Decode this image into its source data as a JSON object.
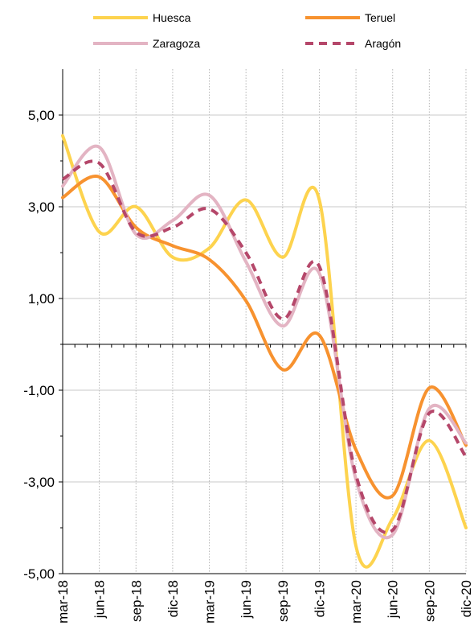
{
  "chart_data": {
    "type": "line",
    "title": "",
    "xlabel": "",
    "ylabel": "",
    "categories": [
      "mar-18",
      "jun-18",
      "sep-18",
      "dic-18",
      "mar-19",
      "jun-19",
      "sep-19",
      "dic-19",
      "mar-20",
      "jun-20",
      "sep-20",
      "dic-20"
    ],
    "ylim": [
      -5,
      6
    ],
    "y_ticks": [
      5,
      3,
      1,
      -1,
      -3,
      -5
    ],
    "y_tick_labels": [
      "5,00",
      "3,00",
      "1,00",
      "-1,00",
      "-3,00",
      "-5,00"
    ],
    "grid": {
      "x": true,
      "y": true
    },
    "legend": "top",
    "series": [
      {
        "name": "Huesca",
        "color": "#FDD34E",
        "dash": false,
        "values": [
          4.55,
          2.45,
          3.0,
          1.9,
          2.1,
          3.15,
          1.9,
          3.15,
          -4.4,
          -3.8,
          -2.1,
          -4.0
        ]
      },
      {
        "name": "Teruel",
        "color": "#F7922F",
        "dash": false,
        "values": [
          3.2,
          3.65,
          2.55,
          2.15,
          1.85,
          0.95,
          -0.55,
          0.2,
          -2.3,
          -3.3,
          -0.95,
          -2.2
        ]
      },
      {
        "name": "Zaragoza",
        "color": "#E3B4C3",
        "dash": false,
        "values": [
          3.45,
          4.3,
          2.4,
          2.7,
          3.25,
          1.8,
          0.4,
          1.55,
          -2.95,
          -4.15,
          -1.4,
          -2.15
        ]
      },
      {
        "name": "Aragón",
        "color": "#B5476A",
        "dash": true,
        "values": [
          3.6,
          3.95,
          2.45,
          2.55,
          2.95,
          2.0,
          0.55,
          1.7,
          -2.85,
          -4.05,
          -1.5,
          -2.45
        ]
      }
    ]
  }
}
